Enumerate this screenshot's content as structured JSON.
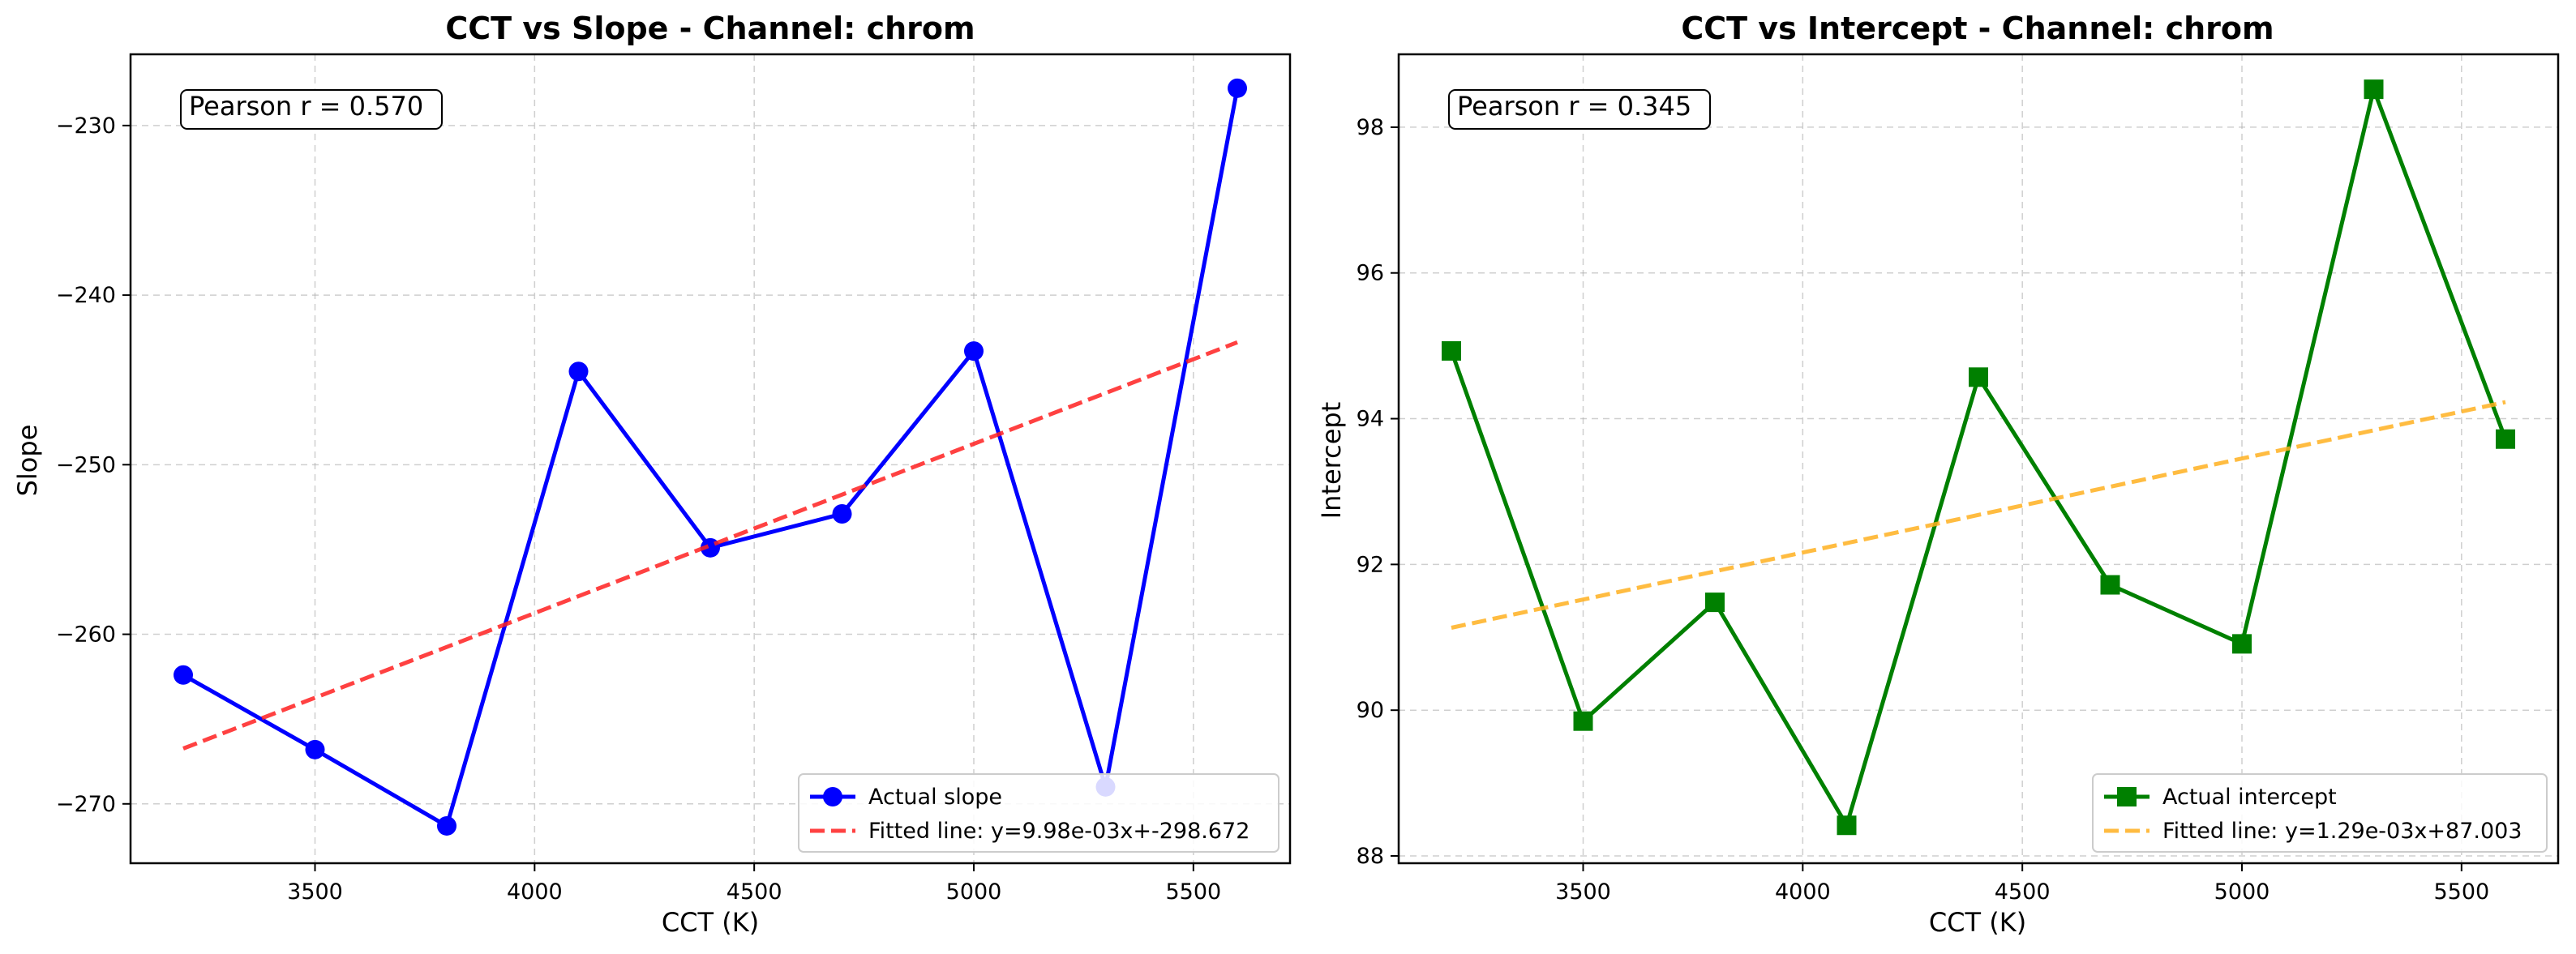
{
  "chart_data": [
    {
      "type": "line",
      "title": "CCT vs Slope - Channel: chrom",
      "xlabel": "CCT (K)",
      "ylabel": "Slope",
      "xlim": [
        3080,
        5720
      ],
      "ylim": [
        -273.5,
        -225.8
      ],
      "xticks": [
        3500,
        4000,
        4500,
        5000,
        5500
      ],
      "yticks": [
        -270,
        -260,
        -250,
        -240,
        -230
      ],
      "ytick_labels": [
        "−270",
        "−260",
        "−250",
        "−240",
        "−230"
      ],
      "grid": true,
      "legend_position": "lower right",
      "annotation": "Pearson r = 0.570",
      "series": [
        {
          "name": "Actual slope",
          "kind": "line-marker",
          "marker": "circle",
          "color": "#0000ff",
          "x": [
            3200,
            3500,
            3800,
            4100,
            4400,
            4700,
            5000,
            5300,
            5600
          ],
          "y": [
            -262.4,
            -266.8,
            -271.3,
            -244.5,
            -254.9,
            -252.9,
            -243.3,
            -269.0,
            -227.8
          ]
        },
        {
          "name": "Fitted line: y=9.98e-03x+-298.672",
          "kind": "dashed",
          "color": "#ff2020",
          "x": [
            3200,
            5600
          ],
          "y": [
            -266.736,
            -242.784
          ]
        }
      ]
    },
    {
      "type": "line",
      "title": "CCT vs Intercept - Channel: chrom",
      "xlabel": "CCT (K)",
      "ylabel": "Intercept",
      "xlim": [
        3080,
        5720
      ],
      "ylim": [
        87.9,
        99.0
      ],
      "xticks": [
        3500,
        4000,
        4500,
        5000,
        5500
      ],
      "yticks": [
        88,
        90,
        92,
        94,
        96,
        98
      ],
      "ytick_labels": [
        "88",
        "90",
        "92",
        "94",
        "96",
        "98"
      ],
      "grid": true,
      "legend_position": "lower right",
      "annotation": "Pearson r = 0.345",
      "series": [
        {
          "name": "Actual intercept",
          "kind": "line-marker",
          "marker": "square",
          "color": "#008000",
          "x": [
            3200,
            3500,
            3800,
            4100,
            4400,
            4700,
            5000,
            5300,
            5600
          ],
          "y": [
            94.93,
            89.85,
            91.48,
            88.42,
            94.57,
            91.72,
            90.91,
            98.52,
            93.72
          ]
        },
        {
          "name": "Fitted line: y=1.29e-03x+87.003",
          "kind": "dashed",
          "color": "#ffb020",
          "x": [
            3200,
            5600
          ],
          "y": [
            91.131,
            94.227
          ]
        }
      ]
    }
  ]
}
